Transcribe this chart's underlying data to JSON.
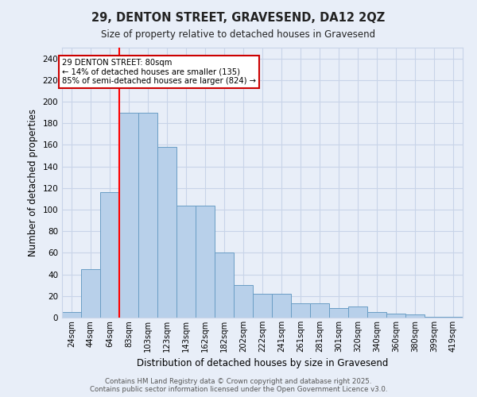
{
  "title_line1": "29, DENTON STREET, GRAVESEND, DA12 2QZ",
  "title_line2": "Size of property relative to detached houses in Gravesend",
  "xlabel": "Distribution of detached houses by size in Gravesend",
  "ylabel": "Number of detached properties",
  "categories": [
    "24sqm",
    "44sqm",
    "64sqm",
    "83sqm",
    "103sqm",
    "123sqm",
    "143sqm",
    "162sqm",
    "182sqm",
    "202sqm",
    "222sqm",
    "241sqm",
    "261sqm",
    "281sqm",
    "301sqm",
    "320sqm",
    "340sqm",
    "360sqm",
    "380sqm",
    "399sqm",
    "419sqm"
  ],
  "values": [
    5,
    45,
    116,
    190,
    190,
    158,
    104,
    104,
    60,
    30,
    22,
    22,
    13,
    13,
    9,
    10,
    5,
    4,
    3,
    1,
    1
  ],
  "bar_color": "#b8d0ea",
  "bar_edge_color": "#6a9ec5",
  "grid_color": "#c8d4e8",
  "background_color": "#e8eef8",
  "vline_color": "red",
  "vline_pos": 2.5,
  "annotation_text": "29 DENTON STREET: 80sqm\n← 14% of detached houses are smaller (135)\n85% of semi-detached houses are larger (824) →",
  "annotation_box_edge_color": "#cc0000",
  "ylim": [
    0,
    250
  ],
  "yticks": [
    0,
    20,
    40,
    60,
    80,
    100,
    120,
    140,
    160,
    180,
    200,
    220,
    240
  ],
  "footer_line1": "Contains HM Land Registry data © Crown copyright and database right 2025.",
  "footer_line2": "Contains public sector information licensed under the Open Government Licence v3.0."
}
